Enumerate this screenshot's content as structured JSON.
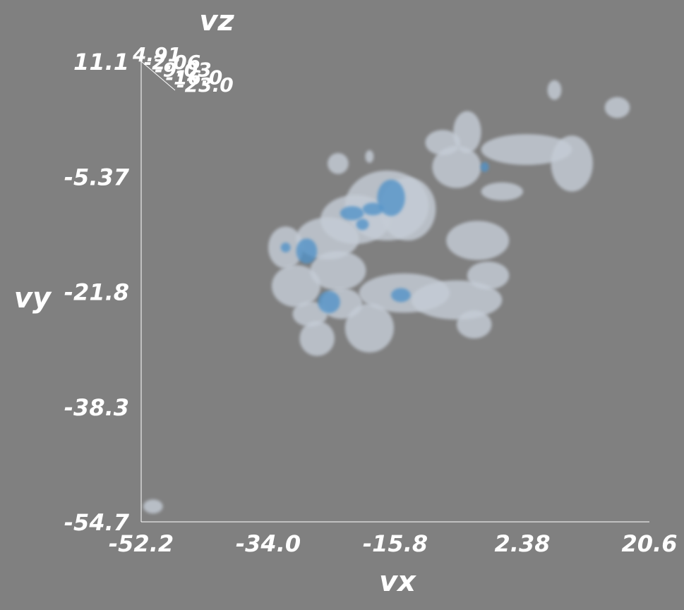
{
  "chart_data": {
    "type": "scatter",
    "subtype": "3d-isosurface",
    "title": "",
    "xlabel": "vx",
    "ylabel": "vy",
    "zlabel": "vz",
    "x_ticks": [
      "-52.2",
      "-34.0",
      "-15.8",
      "2.38",
      "20.6"
    ],
    "y_ticks": [
      "11.1",
      "-5.37",
      "-21.8",
      "-38.3",
      "-54.7"
    ],
    "z_ticks": [
      "4.91",
      "-2.06",
      "-9.03",
      "-16.0",
      "-23.0"
    ],
    "xlim": [
      -52.2,
      20.6
    ],
    "ylim": [
      -54.7,
      11.1
    ],
    "zlim": [
      -23.0,
      4.91
    ],
    "colors": {
      "background": "#808080",
      "outer_surface": "#c4ccd6",
      "inner_surface": "#4f92c8",
      "axis": "#ffffff"
    },
    "outer_blobs": [
      {
        "x": -25.5,
        "y": -14.2,
        "rx": 4.5,
        "ry": 3.0
      },
      {
        "x": -24.0,
        "y": -18.8,
        "rx": 4.0,
        "ry": 2.8
      },
      {
        "x": -23.5,
        "y": -23.5,
        "rx": 3.0,
        "ry": 2.2
      },
      {
        "x": -17.0,
        "y": -9.5,
        "rx": 6.0,
        "ry": 5.0
      },
      {
        "x": -21.5,
        "y": -11.5,
        "rx": 5.0,
        "ry": 3.5
      },
      {
        "x": -14.0,
        "y": -10.0,
        "rx": 4.0,
        "ry": 4.5
      },
      {
        "x": -19.5,
        "y": -27.0,
        "rx": 3.5,
        "ry": 3.5
      },
      {
        "x": -14.5,
        "y": -22.0,
        "rx": 6.5,
        "ry": 2.8
      },
      {
        "x": -7.0,
        "y": -23.0,
        "rx": 6.5,
        "ry": 2.8
      },
      {
        "x": -4.5,
        "y": -26.5,
        "rx": 2.5,
        "ry": 2.0
      },
      {
        "x": -2.5,
        "y": -19.5,
        "rx": 3.0,
        "ry": 2.0
      },
      {
        "x": -4.0,
        "y": -14.5,
        "rx": 4.5,
        "ry": 2.8
      },
      {
        "x": -5.5,
        "y": 1.0,
        "rx": 2.0,
        "ry": 3.0
      },
      {
        "x": -9.0,
        "y": -0.5,
        "rx": 2.5,
        "ry": 1.8
      },
      {
        "x": -7.0,
        "y": -4.0,
        "rx": 3.5,
        "ry": 3.0
      },
      {
        "x": 3.0,
        "y": -1.5,
        "rx": 6.5,
        "ry": 2.2
      },
      {
        "x": 9.5,
        "y": -3.5,
        "rx": 3.0,
        "ry": 4.0
      },
      {
        "x": -31.5,
        "y": -15.5,
        "rx": 2.5,
        "ry": 3.0
      },
      {
        "x": -30.0,
        "y": -21.0,
        "rx": 3.5,
        "ry": 3.0
      },
      {
        "x": -28.0,
        "y": -25.0,
        "rx": 2.5,
        "ry": 1.8
      },
      {
        "x": -27.0,
        "y": -28.5,
        "rx": 2.5,
        "ry": 2.5
      },
      {
        "x": -24.0,
        "y": -3.5,
        "rx": 1.5,
        "ry": 1.5
      },
      {
        "x": -19.5,
        "y": -2.5,
        "rx": 0.6,
        "ry": 0.9
      },
      {
        "x": 7.0,
        "y": 7.0,
        "rx": 1.0,
        "ry": 1.4
      },
      {
        "x": 16.0,
        "y": 4.5,
        "rx": 1.8,
        "ry": 1.5
      },
      {
        "x": -50.5,
        "y": -52.5,
        "rx": 1.4,
        "ry": 1.0
      },
      {
        "x": -0.5,
        "y": -7.5,
        "rx": 3.0,
        "ry": 1.3
      }
    ],
    "inner_blobs": [
      {
        "x": -16.4,
        "y": -8.4,
        "rx": 2.0,
        "ry": 2.6
      },
      {
        "x": -22.0,
        "y": -10.6,
        "rx": 1.7,
        "ry": 1.0
      },
      {
        "x": -19.0,
        "y": -10.0,
        "rx": 1.5,
        "ry": 0.9
      },
      {
        "x": -20.5,
        "y": -12.2,
        "rx": 0.9,
        "ry": 0.8
      },
      {
        "x": -28.5,
        "y": -16.0,
        "rx": 1.5,
        "ry": 1.8
      },
      {
        "x": -31.5,
        "y": -15.5,
        "rx": 0.7,
        "ry": 0.7
      },
      {
        "x": -25.3,
        "y": -23.3,
        "rx": 1.6,
        "ry": 1.6
      },
      {
        "x": -15.0,
        "y": -22.3,
        "rx": 1.4,
        "ry": 1.0
      },
      {
        "x": -3.0,
        "y": -4.0,
        "rx": 0.6,
        "ry": 0.7
      }
    ]
  }
}
